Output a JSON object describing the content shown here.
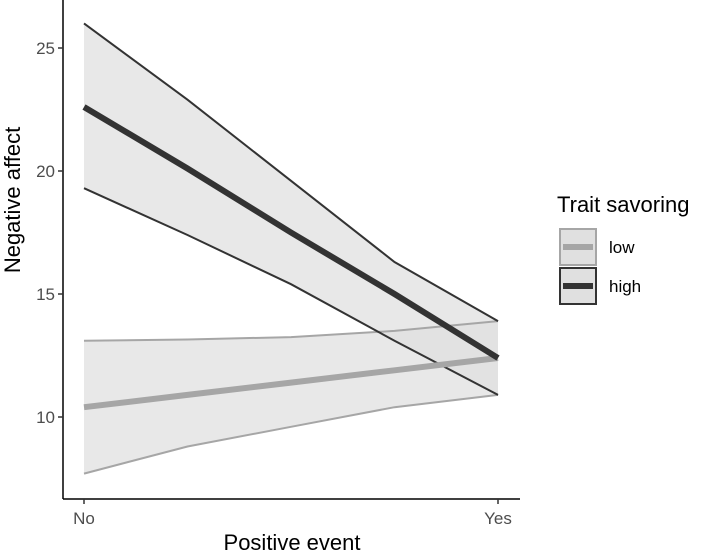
{
  "chart_data": {
    "type": "line",
    "title": "",
    "xlabel": "Positive event",
    "ylabel": "Negative affect",
    "categories": [
      "No",
      "Yes"
    ],
    "y_ticks": [
      "10",
      "15",
      "20",
      "25"
    ],
    "ylim": [
      7,
      27.5
    ],
    "legend_title": "Trait savoring",
    "legend_position": "right",
    "grid": false,
    "series": [
      {
        "name": "low",
        "color": "#a6a6a6",
        "ribbon_fill": "#e0e0e0",
        "x": [
          0,
          0.25,
          0.5,
          0.75,
          1
        ],
        "values": [
          10.4,
          10.9,
          11.4,
          11.9,
          12.4
        ],
        "lower": [
          7.7,
          8.8,
          9.6,
          10.4,
          10.9
        ],
        "upper": [
          13.1,
          13.15,
          13.25,
          13.5,
          13.9
        ]
      },
      {
        "name": "high",
        "color": "#333333",
        "ribbon_fill": "#e0e0e0",
        "x": [
          0,
          0.25,
          0.5,
          0.75,
          1
        ],
        "values": [
          22.6,
          20.1,
          17.5,
          15.0,
          12.4
        ],
        "lower": [
          19.3,
          17.4,
          15.4,
          13.1,
          10.9
        ],
        "upper": [
          26.0,
          22.9,
          19.6,
          16.3,
          13.9
        ]
      }
    ]
  }
}
